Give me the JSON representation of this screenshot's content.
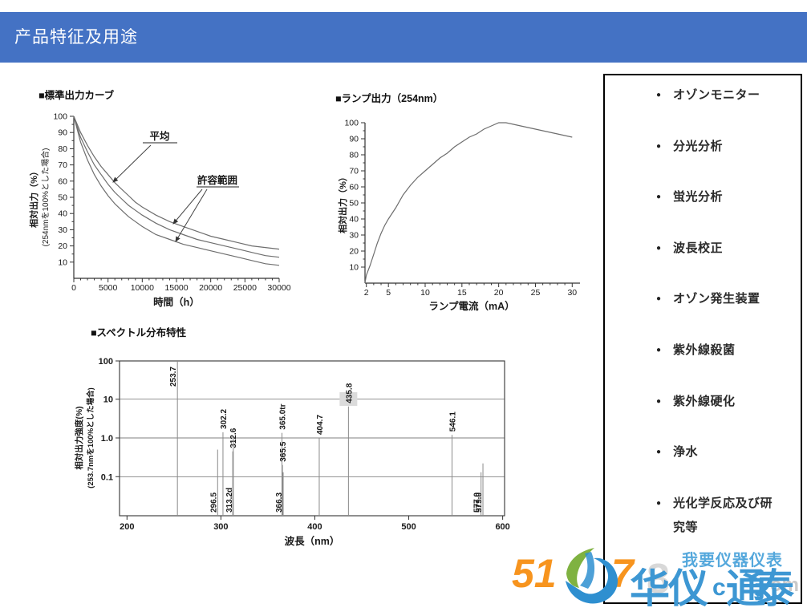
{
  "header": {
    "title": "产品特征及用途",
    "bg_color": "#4472C4",
    "text_color": "#FFFFFF"
  },
  "chart_data": [
    {
      "type": "line",
      "title": "■標準出力カーブ",
      "xlabel": "時間（h）",
      "ylabel_line1": "相対出力（%）",
      "ylabel_line2": "(254nmを100%とした場合)",
      "xlim": [
        0,
        30000
      ],
      "ylim": [
        0,
        100
      ],
      "xticks": [
        "0",
        "5000",
        "10000",
        "15000",
        "20000",
        "25000",
        "30000"
      ],
      "yticks": [
        "10",
        "20",
        "30",
        "40",
        "50",
        "60",
        "70",
        "80",
        "90",
        "100"
      ],
      "grid": false,
      "annotations": [
        {
          "label": "平均"
        },
        {
          "label": "許容範囲"
        }
      ],
      "series": [
        {
          "name": "upper_tolerance",
          "points": [
            [
              0,
              100
            ],
            [
              1000,
              90
            ],
            [
              2000,
              82
            ],
            [
              3000,
              75
            ],
            [
              4000,
              69
            ],
            [
              5000,
              64
            ],
            [
              6000,
              59
            ],
            [
              7000,
              55
            ],
            [
              8000,
              51
            ],
            [
              9000,
              47
            ],
            [
              10000,
              44
            ],
            [
              12000,
              39
            ],
            [
              14000,
              35
            ],
            [
              16000,
              32
            ],
            [
              18000,
              29
            ],
            [
              20000,
              26
            ],
            [
              22000,
              24
            ],
            [
              24000,
              22
            ],
            [
              26000,
              20
            ],
            [
              28000,
              19
            ],
            [
              30000,
              18
            ]
          ]
        },
        {
          "name": "average",
          "points": [
            [
              0,
              100
            ],
            [
              1000,
              87
            ],
            [
              2000,
              78
            ],
            [
              3000,
              70
            ],
            [
              4000,
              64
            ],
            [
              5000,
              58
            ],
            [
              6000,
              53
            ],
            [
              7000,
              49
            ],
            [
              8000,
              45
            ],
            [
              9000,
              42
            ],
            [
              10000,
              39
            ],
            [
              12000,
              34
            ],
            [
              14000,
              30
            ],
            [
              16000,
              27
            ],
            [
              18000,
              24
            ],
            [
              20000,
              22
            ],
            [
              22000,
              20
            ],
            [
              24000,
              18
            ],
            [
              26000,
              16
            ],
            [
              28000,
              14
            ],
            [
              30000,
              13
            ]
          ]
        },
        {
          "name": "lower_tolerance",
          "points": [
            [
              0,
              100
            ],
            [
              1000,
              84
            ],
            [
              2000,
              73
            ],
            [
              3000,
              64
            ],
            [
              4000,
              57
            ],
            [
              5000,
              51
            ],
            [
              6000,
              46
            ],
            [
              7000,
              42
            ],
            [
              8000,
              38
            ],
            [
              9000,
              35
            ],
            [
              10000,
              32
            ],
            [
              12000,
              27
            ],
            [
              14000,
              24
            ],
            [
              16000,
              21
            ],
            [
              18000,
              19
            ],
            [
              20000,
              17
            ],
            [
              22000,
              15
            ],
            [
              24000,
              13
            ],
            [
              26000,
              11
            ],
            [
              28000,
              9
            ],
            [
              30000,
              8
            ]
          ]
        }
      ]
    },
    {
      "type": "line",
      "title": "■ランプ出力（254nm）",
      "xlabel": "ランプ電流（mA）",
      "ylabel_line1": "相対出力（%）",
      "xlim": [
        1.7,
        30
      ],
      "ylim": [
        0,
        100
      ],
      "xticks": [
        "2",
        "5",
        "10",
        "15",
        "20",
        "25",
        "30"
      ],
      "yticks": [
        "10",
        "20",
        "30",
        "40",
        "50",
        "60",
        "70",
        "80",
        "90",
        "100"
      ],
      "grid": false,
      "series": [
        {
          "name": "relative_output",
          "points": [
            [
              1.8,
              0
            ],
            [
              2,
              5
            ],
            [
              2.5,
              11
            ],
            [
              3,
              18
            ],
            [
              3.5,
              25
            ],
            [
              4,
              31
            ],
            [
              4.5,
              36
            ],
            [
              5,
              40
            ],
            [
              6,
              47
            ],
            [
              7,
              55
            ],
            [
              8,
              61
            ],
            [
              9,
              66
            ],
            [
              10,
              70
            ],
            [
              11,
              74
            ],
            [
              12,
              78
            ],
            [
              13,
              81
            ],
            [
              14,
              85
            ],
            [
              15,
              88
            ],
            [
              16,
              91
            ],
            [
              17,
              93
            ],
            [
              18,
              96
            ],
            [
              19,
              98
            ],
            [
              20,
              100
            ],
            [
              21,
              100
            ],
            [
              22,
              99
            ],
            [
              23,
              98
            ],
            [
              24,
              97
            ],
            [
              25,
              96
            ],
            [
              26,
              95
            ],
            [
              27,
              94
            ],
            [
              28,
              93
            ],
            [
              29,
              92
            ],
            [
              30,
              91
            ]
          ]
        }
      ]
    },
    {
      "type": "spectral-lines",
      "title": "■スペクトル分布特性",
      "xlabel": "波長（nm）",
      "ylabel_line1": "相対出力強度(%)",
      "ylabel_line2": "(253.7nmを100%とした場合)",
      "xlim": [
        200,
        600
      ],
      "ylog_range": [
        0.01,
        100
      ],
      "xticks": [
        "200",
        "300",
        "400",
        "500",
        "600"
      ],
      "yticks": [
        "100",
        "10",
        "1.0",
        "0.1"
      ],
      "grid": true,
      "lines": [
        {
          "label": "253.7",
          "nm": 253.7,
          "value": 100,
          "label_pos": "top"
        },
        {
          "label": "296.5",
          "nm": 296.5,
          "value": 0.5,
          "label_pos": "bottom"
        },
        {
          "label": "302.2",
          "nm": 302.2,
          "value": 1.4,
          "label_pos": "above"
        },
        {
          "label": "312.6",
          "nm": 312.6,
          "value": 0.45,
          "label_pos": "above"
        },
        {
          "label": "313.2d",
          "nm": 313.2,
          "value": 1.05,
          "label_pos": "bottom"
        },
        {
          "label": "365.0tr",
          "nm": 365.0,
          "value": 1.35,
          "label_pos": "above"
        },
        {
          "label": "365.5",
          "nm": 365.5,
          "value": 0.2,
          "label_pos": "above"
        },
        {
          "label": "366.3",
          "nm": 366.3,
          "value": 0.13,
          "label_pos": "bottom"
        },
        {
          "label": "404.7",
          "nm": 404.7,
          "value": 1.0,
          "label_pos": "above"
        },
        {
          "label": "435.8",
          "nm": 435.8,
          "value": 6.5,
          "label_pos": "above",
          "highlight": true
        },
        {
          "label": "546.1",
          "nm": 546.1,
          "value": 1.2,
          "label_pos": "above"
        },
        {
          "label": "577.0",
          "nm": 577.0,
          "value": 0.13,
          "label_pos": "bottom"
        },
        {
          "label": "579.0",
          "nm": 579.0,
          "value": 0.22,
          "label_pos": "bottom"
        }
      ]
    }
  ],
  "applications": {
    "items": [
      "オゾンモニター",
      "分光分析",
      "蛍光分析",
      "波長校正",
      "オゾン発生装置",
      "紫外線殺菌",
      "紫外線硬化",
      "浄水",
      "光化学反応及び研究等"
    ]
  },
  "watermark": {
    "number_left": "51",
    "number_right": "7",
    "ghost_digit": "8",
    "brand_part1": "华仪",
    "brand_c": "c",
    "brand_part2": "通",
    "brand_om": "om",
    "brand_part3": "泰",
    "tagline": "我要仪器仪表",
    "orange": "#F7941E",
    "blue": "#3D97D3",
    "light_blue": "#55A8DC"
  }
}
